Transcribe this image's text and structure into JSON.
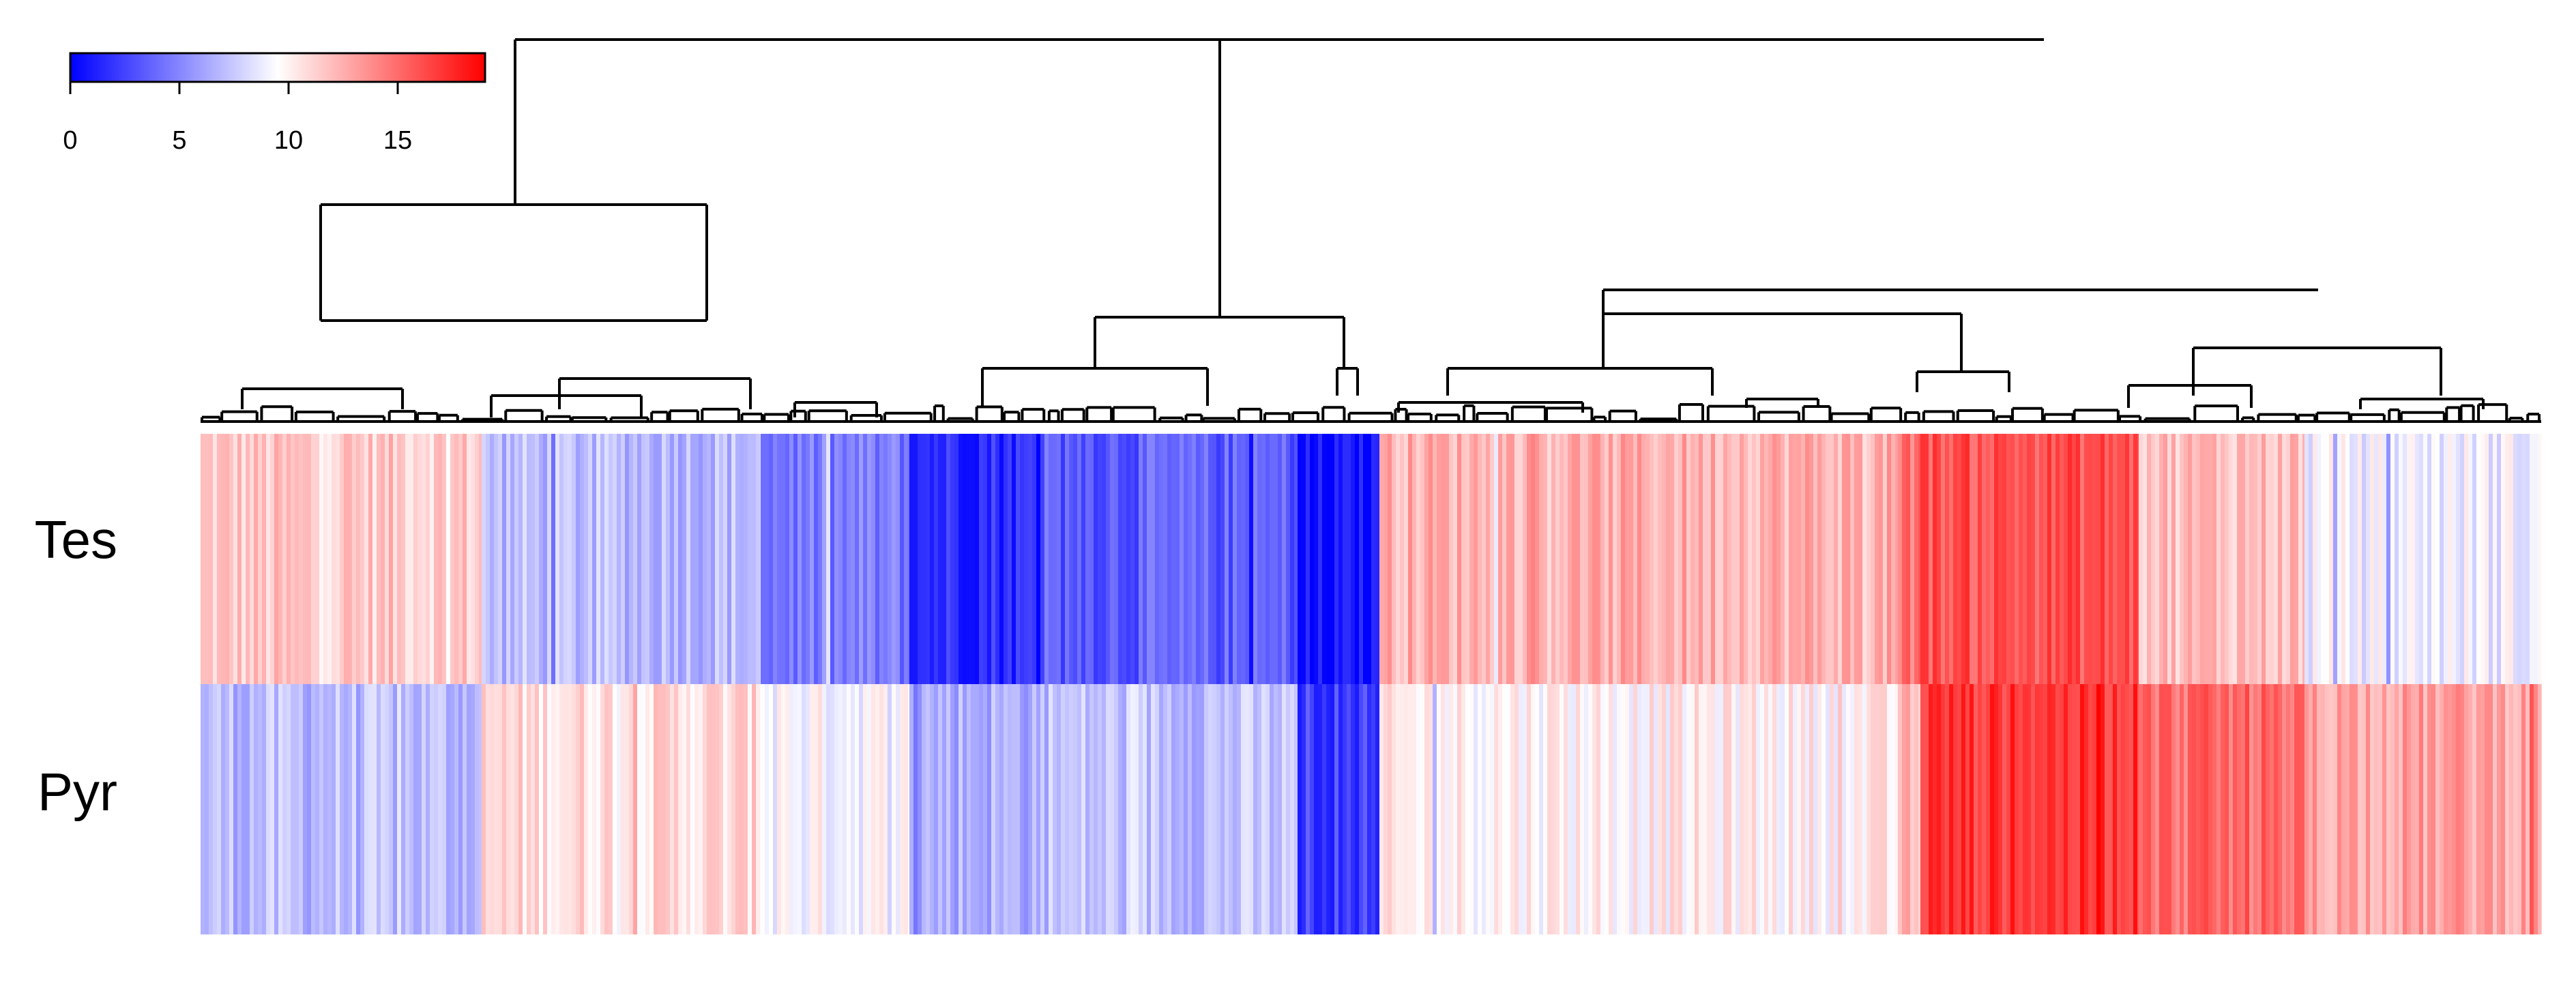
{
  "chart_data": {
    "type": "heatmap",
    "rows": [
      "Tes",
      "Pyr"
    ],
    "color_key": {
      "min": 0,
      "max": 19,
      "ticks": [
        "0",
        "5",
        "10",
        "15"
      ],
      "low_color": "#0000ff",
      "mid_color": "#ffffff",
      "high_color": "#ff0000",
      "mid_value": 9.5
    },
    "dendrogram": "top",
    "column_clusters": [
      {
        "Tes": 11.5,
        "Pyr": 7.0
      },
      {
        "Tes": 7.0,
        "Pyr": 10.8
      },
      {
        "Tes": 4.5,
        "Pyr": 9.4
      },
      {
        "Tes": 1.8,
        "Pyr": 6.6
      },
      {
        "Tes": 3.5,
        "Pyr": 7.2
      },
      {
        "Tes": 0.4,
        "Pyr": 2.4
      },
      {
        "Tes": 12.5,
        "Pyr": 10.0
      },
      {
        "Tes": 14.5,
        "Pyr": 12.4
      },
      {
        "Tes": 16.0,
        "Pyr": 17.0
      },
      {
        "Tes": 12.0,
        "Pyr": 15.0
      },
      {
        "Tes": 9.0,
        "Pyr": 13.0
      }
    ]
  }
}
